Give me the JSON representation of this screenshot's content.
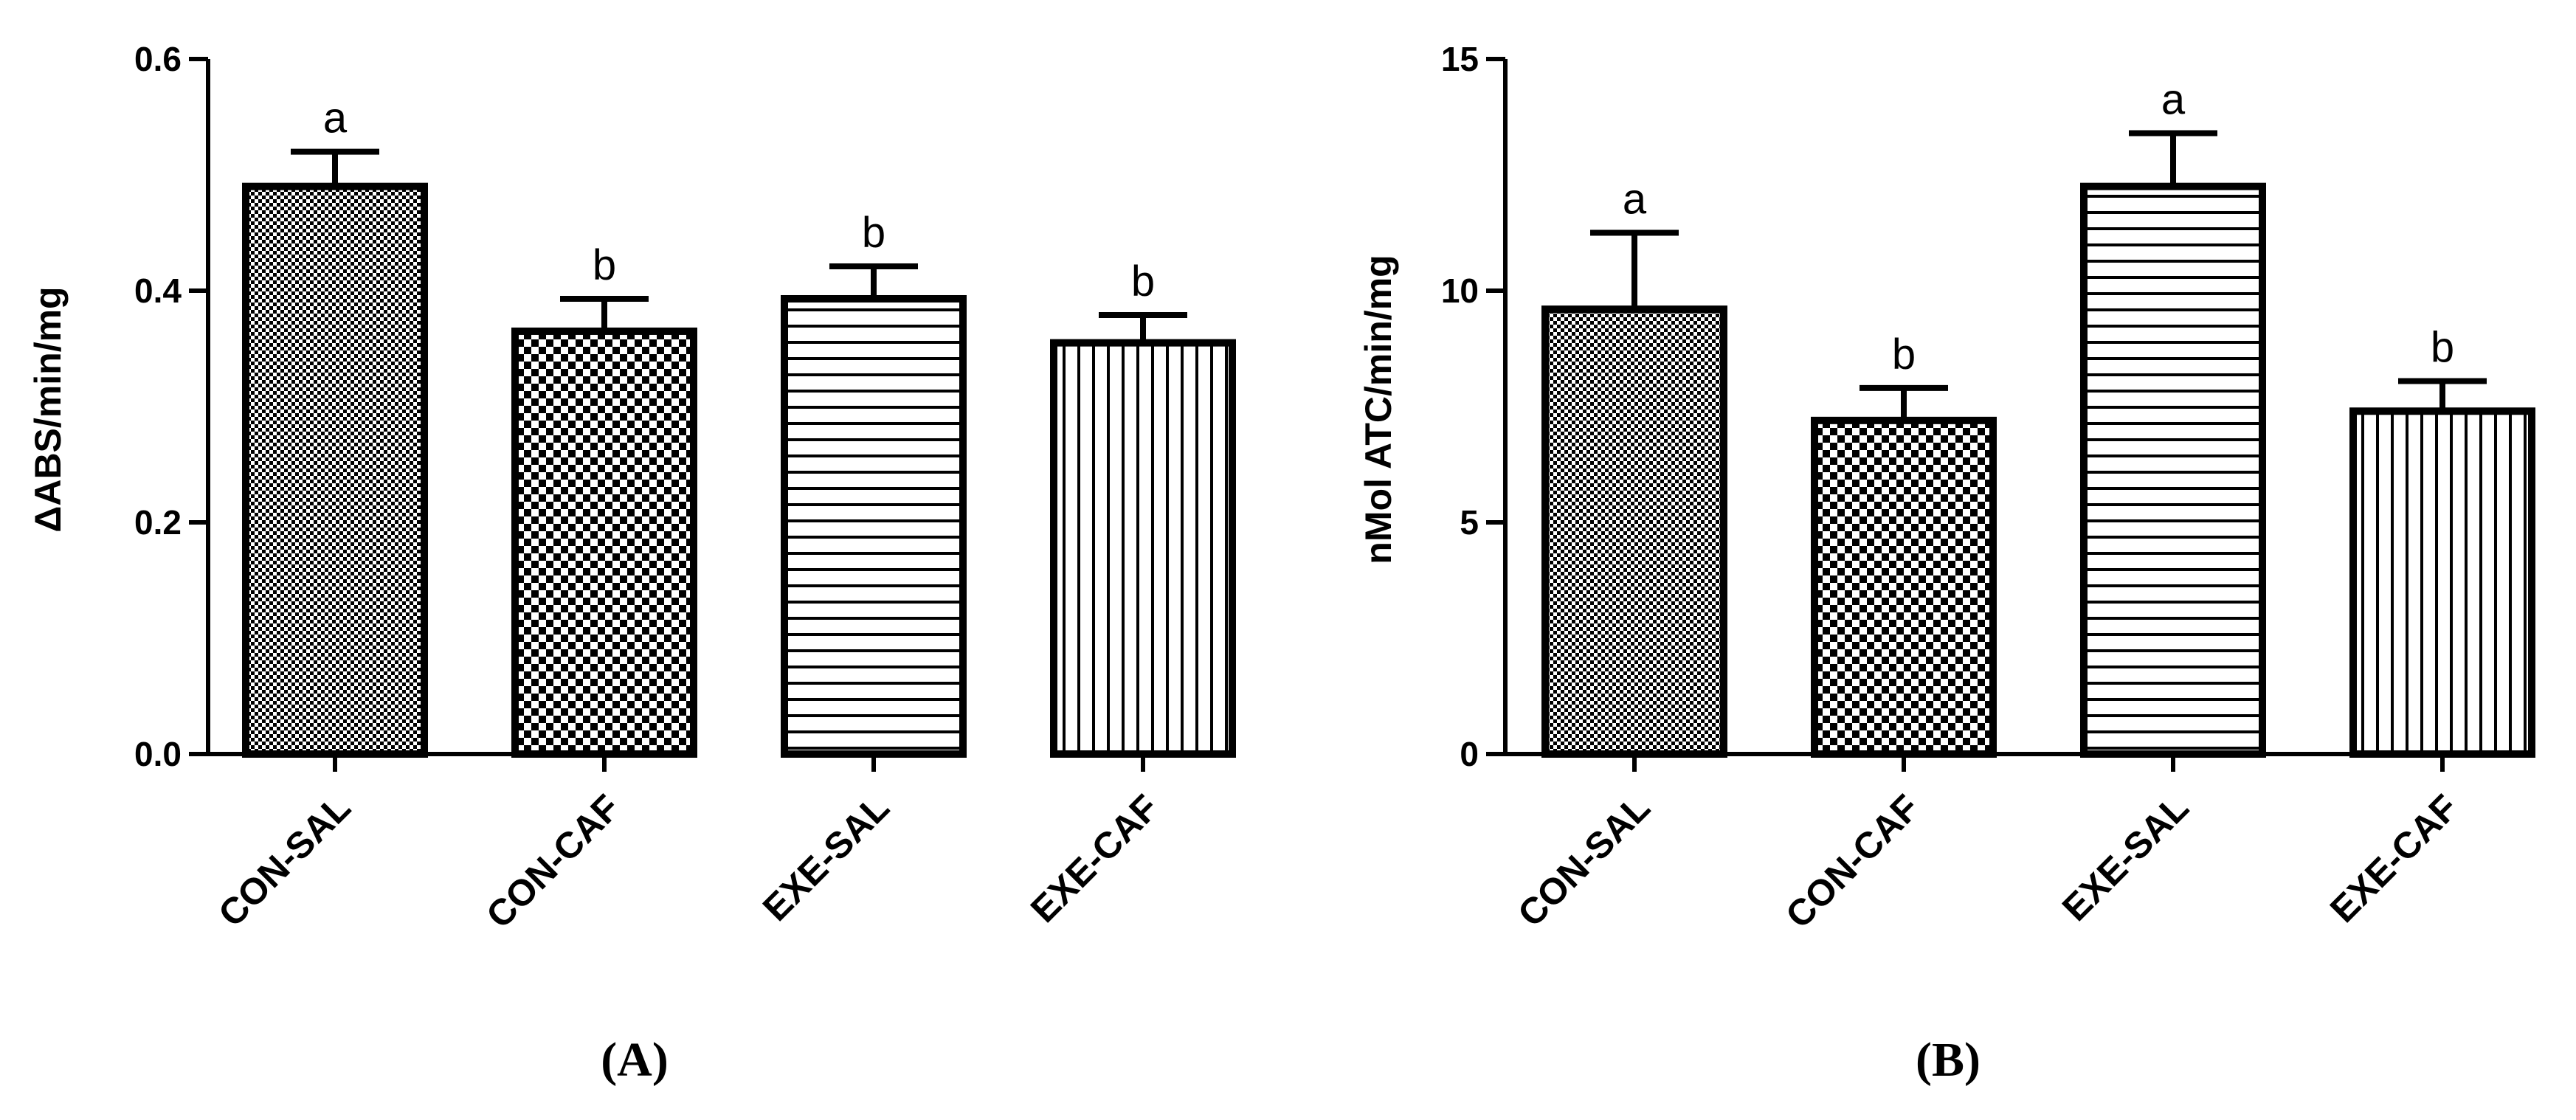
{
  "chart_data": [
    {
      "type": "bar",
      "panel_label": "(A)",
      "ylabel": "ΔABS/min/mg",
      "ylim": [
        0,
        0.6
      ],
      "yticks": [
        0.0,
        0.2,
        0.4,
        0.6
      ],
      "ytick_labels": [
        "0.0",
        "0.2",
        "0.4",
        "0.6"
      ],
      "categories": [
        "CON-SAL",
        "CON-CAF",
        "EXE-SAL",
        "EXE-CAF"
      ],
      "values": [
        0.49,
        0.365,
        0.393,
        0.355
      ],
      "errors": [
        0.03,
        0.028,
        0.028,
        0.024
      ],
      "letters": [
        "a",
        "b",
        "b",
        "b"
      ],
      "patterns": [
        "fine-check",
        "coarse-check",
        "horizontal-lines",
        "vertical-lines"
      ]
    },
    {
      "type": "bar",
      "panel_label": "(B)",
      "ylabel": "nMol ATC/min/mg",
      "ylim": [
        0,
        15
      ],
      "yticks": [
        0,
        5,
        10,
        15
      ],
      "ytick_labels": [
        "0",
        "5",
        "10",
        "15"
      ],
      "categories": [
        "CON-SAL",
        "CON-CAF",
        "EXE-SAL",
        "EXE-CAF"
      ],
      "values": [
        9.6,
        7.2,
        12.25,
        7.4
      ],
      "errors": [
        1.65,
        0.7,
        1.15,
        0.65
      ],
      "letters": [
        "a",
        "b",
        "a",
        "b"
      ],
      "patterns": [
        "fine-check",
        "coarse-check",
        "horizontal-lines",
        "vertical-lines"
      ]
    }
  ]
}
